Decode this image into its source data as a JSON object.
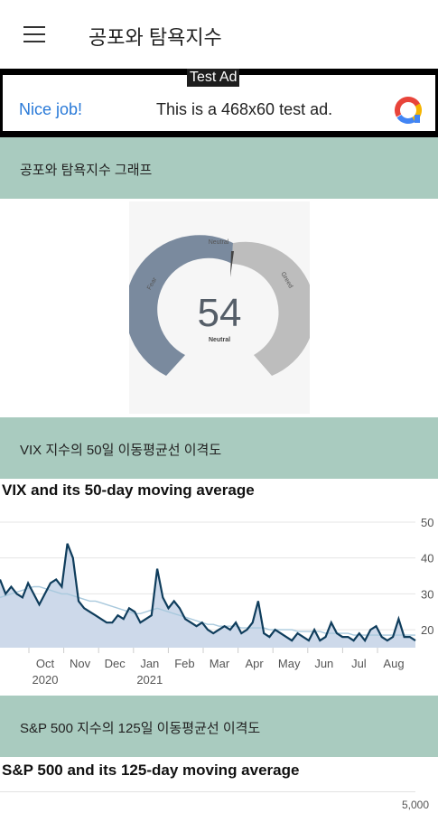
{
  "app": {
    "title": "공포와 탐욕지수"
  },
  "ad": {
    "label": "Test Ad",
    "headline": "Nice job!",
    "text": "This is a 468x60 test ad."
  },
  "sections": {
    "gauge_header": "공포와 탐욕지수 그래프",
    "vix_header": "VIX 지수의 50일 이동평균선 이격도",
    "sp_header": "S&P 500 지수의 125일 이동평균선 이격도"
  },
  "gauge": {
    "value": 54,
    "value_text": "54",
    "status_text": "Neutral",
    "top_label": "Neutral",
    "left_label": "Fear",
    "right_label": "Greed",
    "colors": {
      "fear": "#7a8a9e",
      "greed": "#bdbdbd",
      "needle": "#444444"
    }
  },
  "chart_data": [
    {
      "type": "area",
      "title": "VIX and its 50-day moving average",
      "ylim": [
        15,
        52
      ],
      "yticks": [
        "50",
        "40",
        "30",
        "20"
      ],
      "ytick_values": [
        50,
        40,
        30,
        20
      ],
      "x_tick_labels": [
        "Oct",
        "Nov",
        "Dec",
        "Jan",
        "Feb",
        "Mar",
        "Apr",
        "May",
        "Jun",
        "Jul",
        "Aug"
      ],
      "x_year_labels": [
        "2020",
        "2021"
      ],
      "series": [
        {
          "values": [
            34,
            30,
            32,
            30,
            29,
            33,
            30,
            27,
            30,
            33,
            34,
            32,
            44,
            40,
            28,
            26,
            25,
            24,
            23,
            22,
            22,
            24,
            23,
            26,
            25,
            22,
            23,
            24,
            37,
            29,
            26,
            28,
            26,
            23,
            22,
            21,
            22,
            20,
            19,
            20,
            21,
            20,
            22,
            19,
            20,
            22,
            28,
            19,
            18,
            20,
            19,
            18,
            17,
            19,
            18,
            17,
            20,
            17,
            18,
            22,
            19,
            18,
            18,
            17,
            19,
            17,
            20,
            21,
            18,
            17,
            18,
            23,
            18,
            18,
            17
          ],
          "color": "#0f3d5c"
        },
        {
          "values": [
            29,
            29.5,
            30,
            30.5,
            31,
            31.5,
            32,
            32,
            31.5,
            31,
            30.5,
            30,
            30,
            29.5,
            29,
            28.5,
            28,
            28,
            27.5,
            27,
            26.5,
            26,
            25.5,
            25,
            24.5,
            24.5,
            25,
            25.5,
            26,
            25.5,
            25,
            24.5,
            24,
            23.5,
            23,
            22.5,
            22,
            21.5,
            21.5,
            21,
            21,
            21,
            21,
            20.5,
            20.5,
            20.5,
            20.5,
            20.5,
            20,
            20,
            20,
            20,
            20,
            19.5,
            19.5,
            19.5,
            19.5,
            19.5,
            19,
            19,
            19,
            19,
            19,
            18.5,
            18.5,
            18.5,
            18.5,
            18.5,
            18.5,
            18.5,
            18.5,
            18.5,
            18.5,
            18.5,
            18.5
          ],
          "color": "#a9c9dd"
        }
      ]
    },
    {
      "type": "line",
      "title": "S&P 500 and its 125-day moving average",
      "yticks": [
        "5,000"
      ]
    }
  ]
}
